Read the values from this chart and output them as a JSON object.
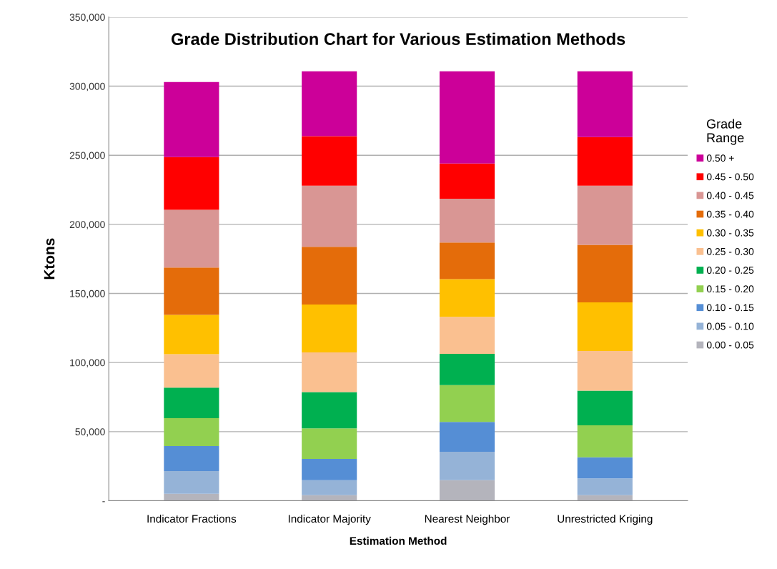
{
  "chart_data": {
    "type": "bar",
    "stacked": true,
    "title": "Grade Distribution Chart for Various Estimation Methods",
    "xlabel": "Estimation Method",
    "ylabel": "Ktons",
    "legend_title": "Grade\nRange",
    "legend": "right",
    "grid": "y",
    "categories": [
      "Indicator Fractions",
      "Indicator Majority",
      "Nearest Neighbor",
      "Unrestricted Kriging"
    ],
    "ylim": [
      0,
      350000
    ],
    "yticks": [
      {
        "value": 0,
        "label": "-"
      },
      {
        "value": 50000,
        "label": "50,000"
      },
      {
        "value": 100000,
        "label": "100,000"
      },
      {
        "value": 150000,
        "label": "150,000"
      },
      {
        "value": 200000,
        "label": "200,000"
      },
      {
        "value": 250000,
        "label": "250,000"
      },
      {
        "value": 300000,
        "label": "300,000"
      },
      {
        "value": 350000,
        "label": "350,000"
      }
    ],
    "series": [
      {
        "name": "0.00 - 0.05",
        "color": "#b4b4bc",
        "values": [
          5000,
          4000,
          14800,
          4000
        ]
      },
      {
        "name": "0.05 - 0.10",
        "color": "#95b3d7",
        "values": [
          16500,
          10800,
          20600,
          12200
        ]
      },
      {
        "name": "0.10 - 0.15",
        "color": "#558ed5",
        "values": [
          18100,
          15500,
          21600,
          15200
        ]
      },
      {
        "name": "0.15 - 0.20",
        "color": "#92d050",
        "values": [
          20100,
          22100,
          26600,
          23100
        ]
      },
      {
        "name": "0.20 - 0.25",
        "color": "#00b050",
        "values": [
          22100,
          26200,
          22700,
          25100
        ]
      },
      {
        "name": "0.25 - 0.30",
        "color": "#fac090",
        "values": [
          24200,
          28700,
          26700,
          28700
        ]
      },
      {
        "name": "0.30 - 0.35",
        "color": "#ffc000",
        "values": [
          28500,
          34700,
          27300,
          35200
        ]
      },
      {
        "name": "0.35 - 0.40",
        "color": "#e46c0a",
        "values": [
          34200,
          41700,
          26500,
          41700
        ]
      },
      {
        "name": "0.40 - 0.45",
        "color": "#d99694",
        "values": [
          41800,
          44300,
          31700,
          42800
        ]
      },
      {
        "name": "0.45 - 0.50",
        "color": "#ff0000",
        "values": [
          38200,
          35800,
          25500,
          35200
        ]
      },
      {
        "name": "0.50 +",
        "color": "#cc0099",
        "values": [
          54300,
          47000,
          66800,
          47600
        ]
      }
    ]
  }
}
